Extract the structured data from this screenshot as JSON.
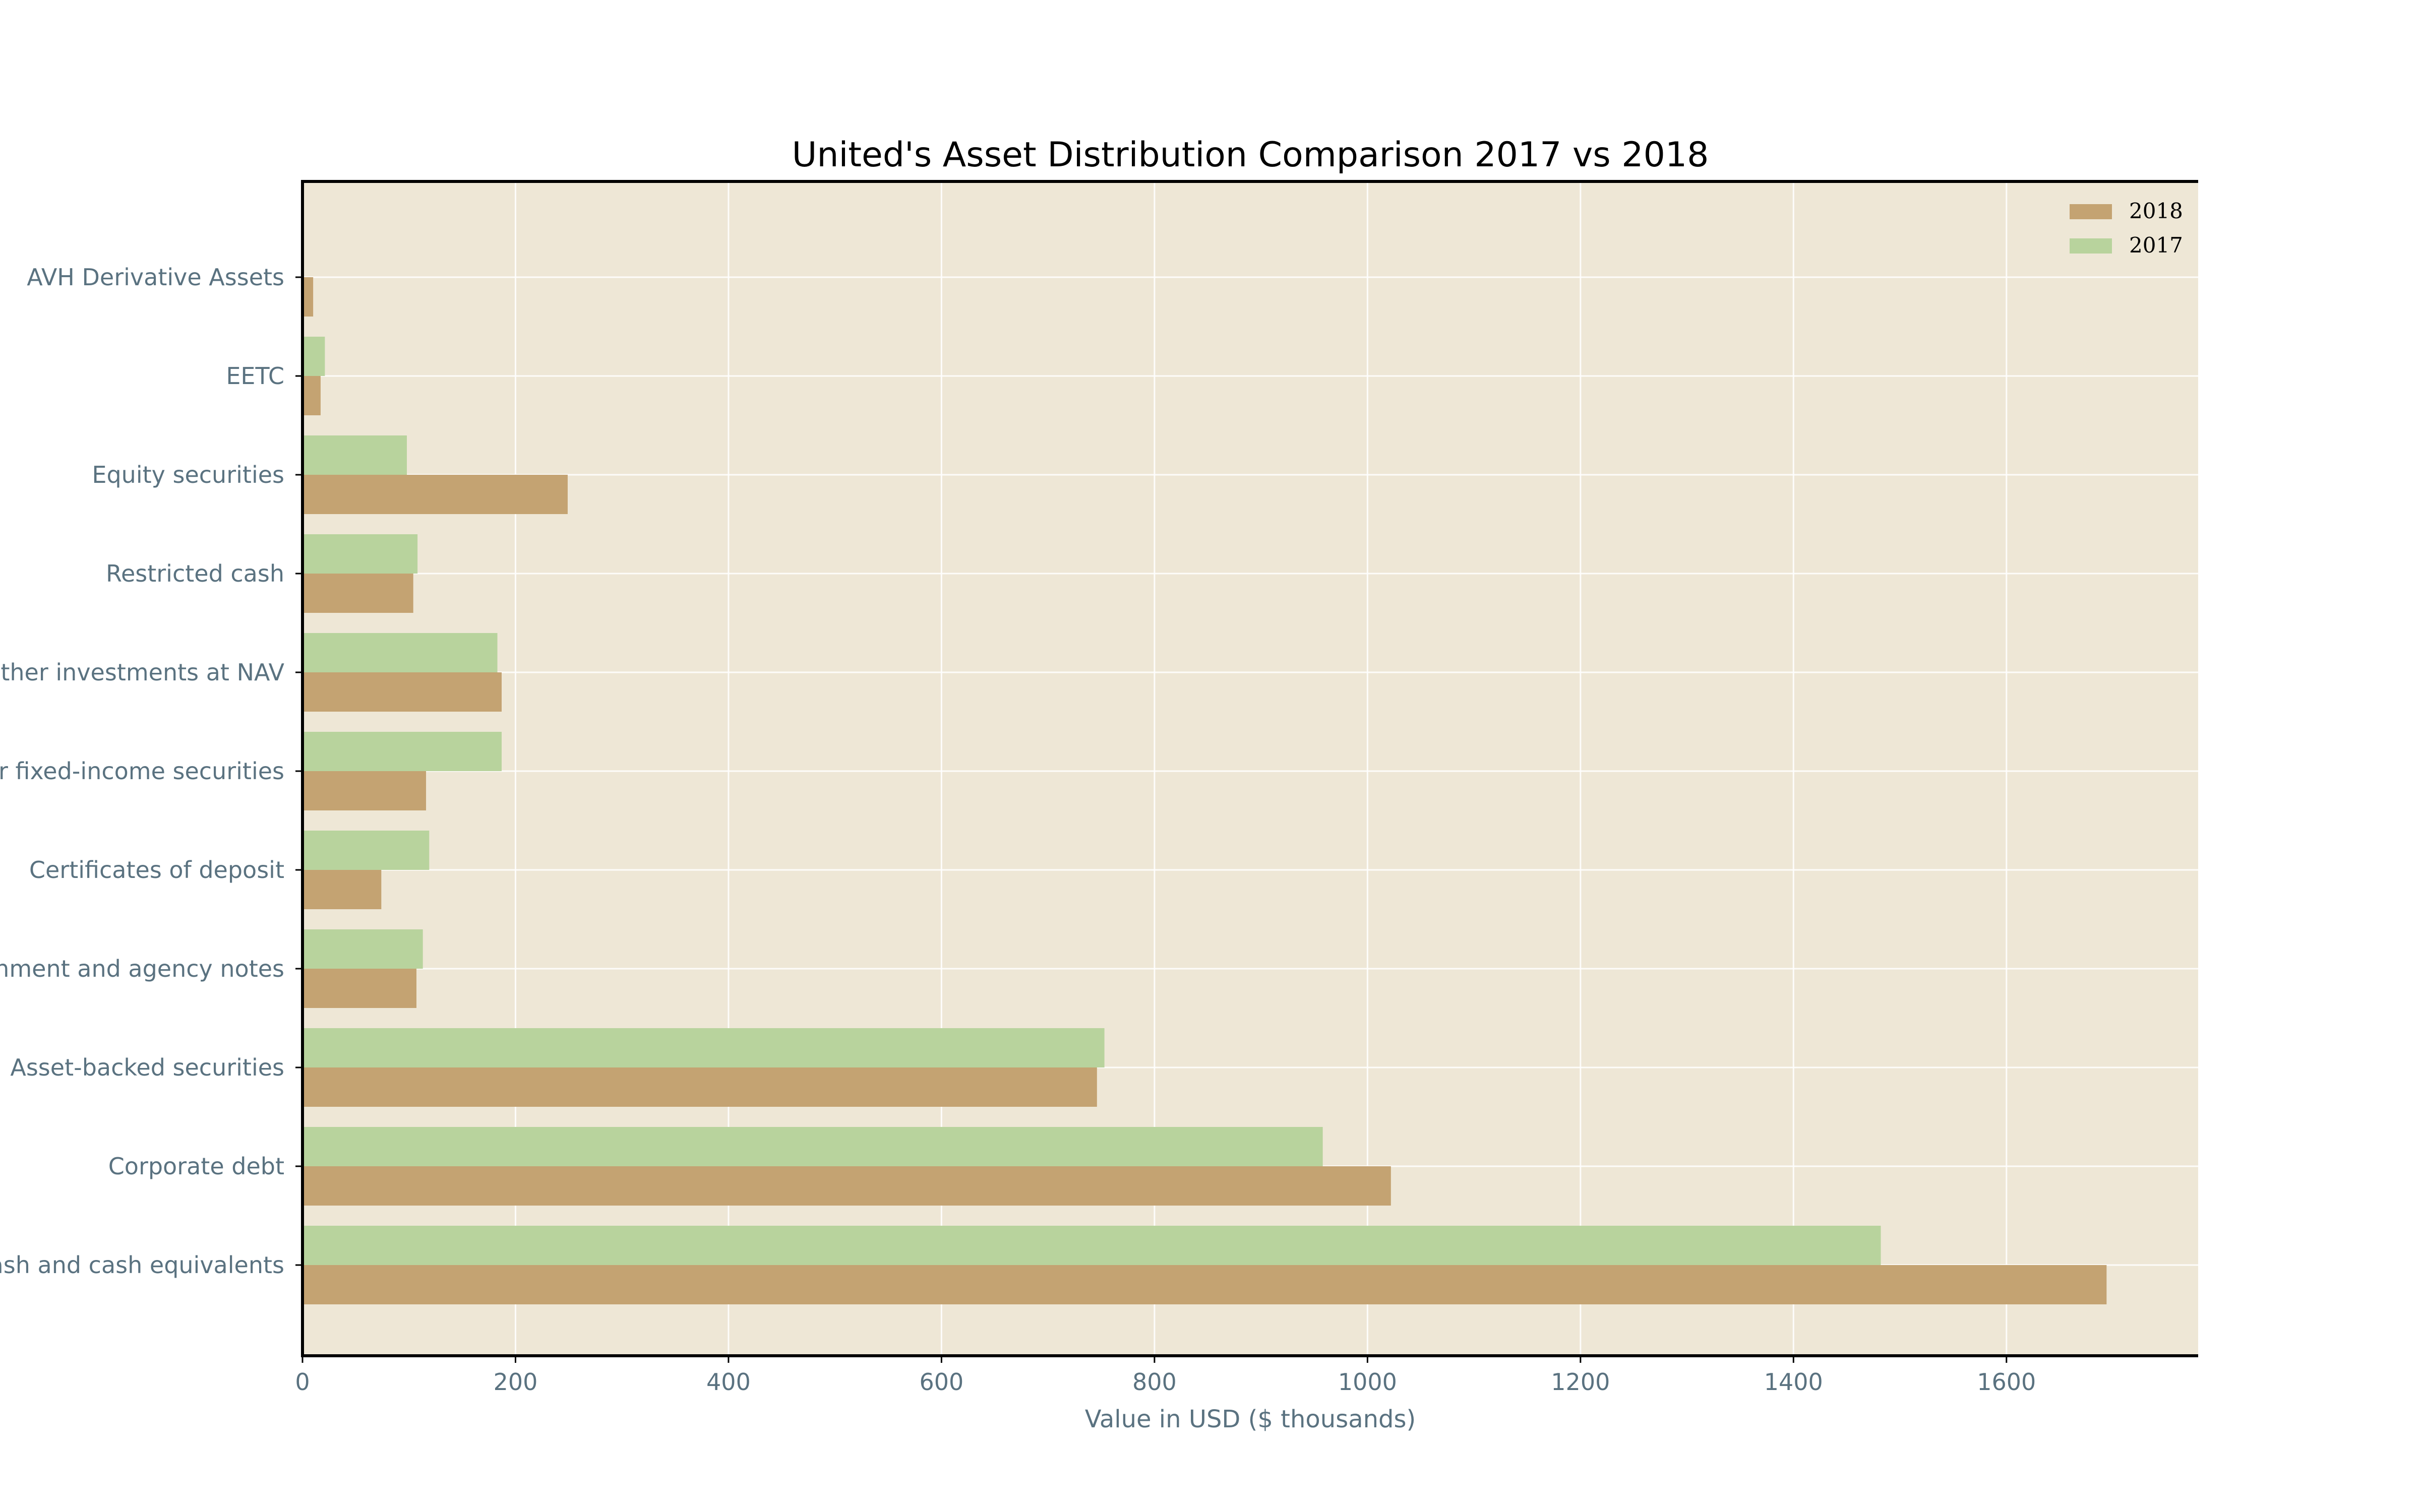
{
  "chart_data": {
    "type": "bar",
    "orientation": "horizontal",
    "title": "United's Asset Distribution Comparison 2017 vs 2018",
    "xlabel": "Value in USD ($ thousands)",
    "ylabel": "",
    "xlim": [
      0,
      1780
    ],
    "x_ticks": [
      0,
      200,
      400,
      600,
      800,
      1000,
      1200,
      1400,
      1600
    ],
    "categories": [
      "Cash and cash equivalents",
      "Corporate debt",
      "Asset-backed securities",
      "U.S. government and agency notes",
      "Certificates of deposit",
      "Other fixed-income securities",
      "Other investments at NAV",
      "Restricted cash",
      "Equity securities",
      "EETC",
      "AVH Derivative Assets"
    ],
    "series": [
      {
        "name": "2018",
        "color": "#c4a372",
        "values": [
          1694,
          1022,
          746,
          107,
          74,
          116,
          187,
          104,
          249,
          17,
          10
        ]
      },
      {
        "name": "2017",
        "color": "#b8d39d",
        "values": [
          1482,
          958,
          753,
          113,
          119,
          187,
          183,
          108,
          98,
          21,
          null
        ]
      }
    ],
    "grid": true,
    "legend_position": "top-right",
    "plot_background": "#eee7d6"
  }
}
